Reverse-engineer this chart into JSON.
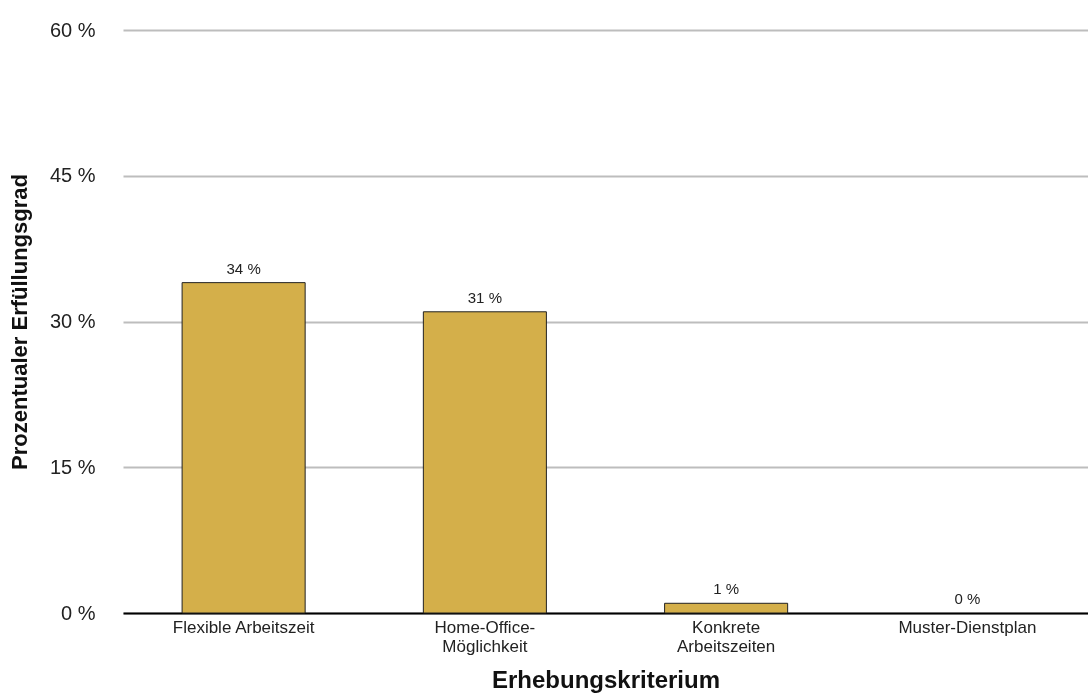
{
  "chart_data": {
    "type": "bar",
    "xlabel": "Erhebungskriterium",
    "ylabel": "Prozentualer Erfüllungsgrad",
    "categories": [
      "Flexible Arbeitszeit",
      "Home-Office-Möglichkeit",
      "Konkrete Arbeitszeiten",
      "Muster-Dienstplan"
    ],
    "values": [
      34,
      31,
      1,
      0
    ],
    "value_labels": [
      "34 %",
      "31 %",
      "1 %",
      "0 %"
    ],
    "color": "#d4af4a",
    "ylim": [
      0,
      60
    ],
    "yticks": [
      {
        "value": 0,
        "label": "0 %"
      },
      {
        "value": 15,
        "label": "15 %"
      },
      {
        "value": 30,
        "label": "30 %"
      },
      {
        "value": 45,
        "label": "45 %"
      },
      {
        "value": 60,
        "label": "60 %"
      }
    ],
    "grid": "y"
  }
}
